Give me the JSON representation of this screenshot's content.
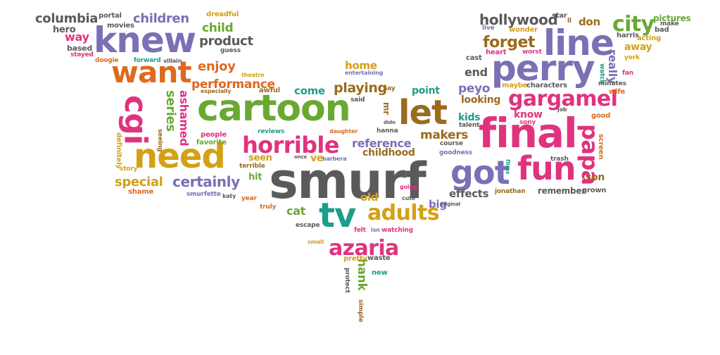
{
  "palette": {
    "gray": "#5a5a5a",
    "purple": "#7b6fb6",
    "orange": "#dd6a1f",
    "pink": "#e0337e",
    "green": "#6aa832",
    "gold": "#d4a016",
    "teal": "#1f9c8a",
    "brown": "#9a6b1d",
    "blue": "#4b7ec2"
  },
  "words": [
    {
      "text": "smurf",
      "color": "gray"
    },
    {
      "text": "cartoon",
      "color": "green"
    },
    {
      "text": "final",
      "color": "pink"
    },
    {
      "text": "let",
      "color": "brown"
    },
    {
      "text": "perry",
      "color": "purple"
    },
    {
      "text": "need",
      "color": "gold"
    },
    {
      "text": "knew",
      "color": "purple"
    },
    {
      "text": "want",
      "color": "orange"
    },
    {
      "text": "line",
      "color": "purple"
    },
    {
      "text": "got",
      "color": "purple"
    },
    {
      "text": "fun",
      "color": "pink"
    },
    {
      "text": "tv",
      "color": "teal"
    },
    {
      "text": "horrible",
      "color": "pink"
    },
    {
      "text": "cgi",
      "color": "pink"
    },
    {
      "text": "gargamel",
      "color": "pink"
    },
    {
      "text": "adults",
      "color": "gold"
    },
    {
      "text": "azaria",
      "color": "pink"
    },
    {
      "text": "papa",
      "color": "pink"
    },
    {
      "text": "city",
      "color": "green"
    },
    {
      "text": "forget",
      "color": "brown"
    },
    {
      "text": "hollywood",
      "color": "gray"
    },
    {
      "text": "series",
      "color": "green"
    },
    {
      "text": "ashamed",
      "color": "pink"
    },
    {
      "text": "performance",
      "color": "orange"
    },
    {
      "text": "enjoy",
      "color": "orange"
    },
    {
      "text": "certainly",
      "color": "purple"
    },
    {
      "text": "special",
      "color": "gold"
    },
    {
      "text": "reference",
      "color": "purple"
    },
    {
      "text": "childhood",
      "color": "brown"
    },
    {
      "text": "makers",
      "color": "brown"
    },
    {
      "text": "playing",
      "color": "brown"
    },
    {
      "text": "columbia",
      "color": "gray"
    },
    {
      "text": "children",
      "color": "purple"
    },
    {
      "text": "product",
      "color": "gray"
    },
    {
      "text": "child",
      "color": "green"
    },
    {
      "text": "hank",
      "color": "green"
    },
    {
      "text": "cat",
      "color": "green"
    },
    {
      "text": "come",
      "color": "teal"
    },
    {
      "text": "home",
      "color": "gold"
    },
    {
      "text": "end",
      "color": "gray"
    },
    {
      "text": "peyo",
      "color": "purple"
    },
    {
      "text": "effects",
      "color": "gray"
    },
    {
      "text": "old",
      "color": "gold"
    },
    {
      "text": "big",
      "color": "purple"
    },
    {
      "text": "really",
      "color": "purple"
    },
    {
      "text": "away",
      "color": "gold"
    },
    {
      "text": "son",
      "color": "brown"
    },
    {
      "text": "kids",
      "color": "teal"
    },
    {
      "text": "know",
      "color": "pink"
    },
    {
      "text": "looking",
      "color": "brown"
    },
    {
      "text": "seen",
      "color": "gold"
    },
    {
      "text": "hit",
      "color": "green"
    },
    {
      "text": "ve",
      "color": "gold"
    },
    {
      "text": "point",
      "color": "teal"
    },
    {
      "text": "don",
      "color": "brown"
    },
    {
      "text": "remember",
      "color": "gray"
    },
    {
      "text": "way",
      "color": "pink"
    },
    {
      "text": "hero",
      "color": "gray"
    },
    {
      "text": "pictures",
      "color": "green"
    },
    {
      "text": "mr",
      "color": "brown"
    },
    {
      "text": "portal",
      "color": "gray"
    },
    {
      "text": "movies",
      "color": "gray"
    },
    {
      "text": "dreadful",
      "color": "gold"
    },
    {
      "text": "guess",
      "color": "gray"
    },
    {
      "text": "based",
      "color": "gray"
    },
    {
      "text": "stayed",
      "color": "pink"
    },
    {
      "text": "doogie",
      "color": "orange"
    },
    {
      "text": "forward",
      "color": "teal"
    },
    {
      "text": "villain",
      "color": "gray"
    },
    {
      "text": "theatre",
      "color": "gold"
    },
    {
      "text": "especially",
      "color": "brown"
    },
    {
      "text": "awful",
      "color": "brown"
    },
    {
      "text": "entertaining",
      "color": "purple"
    },
    {
      "text": "say",
      "color": "brown"
    },
    {
      "text": "said",
      "color": "gray"
    },
    {
      "text": "people",
      "color": "pink"
    },
    {
      "text": "favorite",
      "color": "green"
    },
    {
      "text": "reviews",
      "color": "teal"
    },
    {
      "text": "definitely",
      "color": "gold"
    },
    {
      "text": "seeing",
      "color": "brown"
    },
    {
      "text": "story",
      "color": "gold"
    },
    {
      "text": "shame",
      "color": "orange"
    },
    {
      "text": "smurfette",
      "color": "purple"
    },
    {
      "text": "katy",
      "color": "gray"
    },
    {
      "text": "year",
      "color": "orange"
    },
    {
      "text": "terrible",
      "color": "brown"
    },
    {
      "text": "daughter",
      "color": "orange"
    },
    {
      "text": "hanna",
      "color": "gray"
    },
    {
      "text": "didn",
      "color": "gray"
    },
    {
      "text": "truly",
      "color": "orange"
    },
    {
      "text": "once",
      "color": "gray"
    },
    {
      "text": "barbera",
      "color": "purple"
    },
    {
      "text": "escape",
      "color": "gray"
    },
    {
      "text": "felt",
      "color": "pink"
    },
    {
      "text": "isn",
      "color": "purple"
    },
    {
      "text": "watching",
      "color": "pink"
    },
    {
      "text": "small",
      "color": "gold"
    },
    {
      "text": "pretty",
      "color": "gold"
    },
    {
      "text": "waste",
      "color": "gray"
    },
    {
      "text": "protect",
      "color": "gray"
    },
    {
      "text": "new",
      "color": "teal"
    },
    {
      "text": "simple",
      "color": "brown"
    },
    {
      "text": "going",
      "color": "pink"
    },
    {
      "text": "cute",
      "color": "gray"
    },
    {
      "text": "original",
      "color": "gray"
    },
    {
      "text": "jonathan",
      "color": "brown"
    },
    {
      "text": "talent",
      "color": "gray"
    },
    {
      "text": "course",
      "color": "gray"
    },
    {
      "text": "goodness",
      "color": "purple"
    },
    {
      "text": "films",
      "color": "teal"
    },
    {
      "text": "sony",
      "color": "pink"
    },
    {
      "text": "trash",
      "color": "gray"
    },
    {
      "text": "job",
      "color": "gray"
    },
    {
      "text": "maybe",
      "color": "gold"
    },
    {
      "text": "characters",
      "color": "gray"
    },
    {
      "text": "cast",
      "color": "gray"
    },
    {
      "text": "heart",
      "color": "pink"
    },
    {
      "text": "worst",
      "color": "pink"
    },
    {
      "text": "wonder",
      "color": "gold"
    },
    {
      "text": "live",
      "color": "purple"
    },
    {
      "text": "star",
      "color": "gray"
    },
    {
      "text": "ll",
      "color": "brown"
    },
    {
      "text": "harris",
      "color": "gray"
    },
    {
      "text": "acting",
      "color": "gold"
    },
    {
      "text": "bad",
      "color": "gray"
    },
    {
      "text": "make",
      "color": "gray"
    },
    {
      "text": "york",
      "color": "gold"
    },
    {
      "text": "fan",
      "color": "pink"
    },
    {
      "text": "watch",
      "color": "teal"
    },
    {
      "text": "minutes",
      "color": "gray"
    },
    {
      "text": "wife",
      "color": "orange"
    },
    {
      "text": "good",
      "color": "orange"
    },
    {
      "text": "screen",
      "color": "orange"
    },
    {
      "text": "grown",
      "color": "gray"
    }
  ]
}
